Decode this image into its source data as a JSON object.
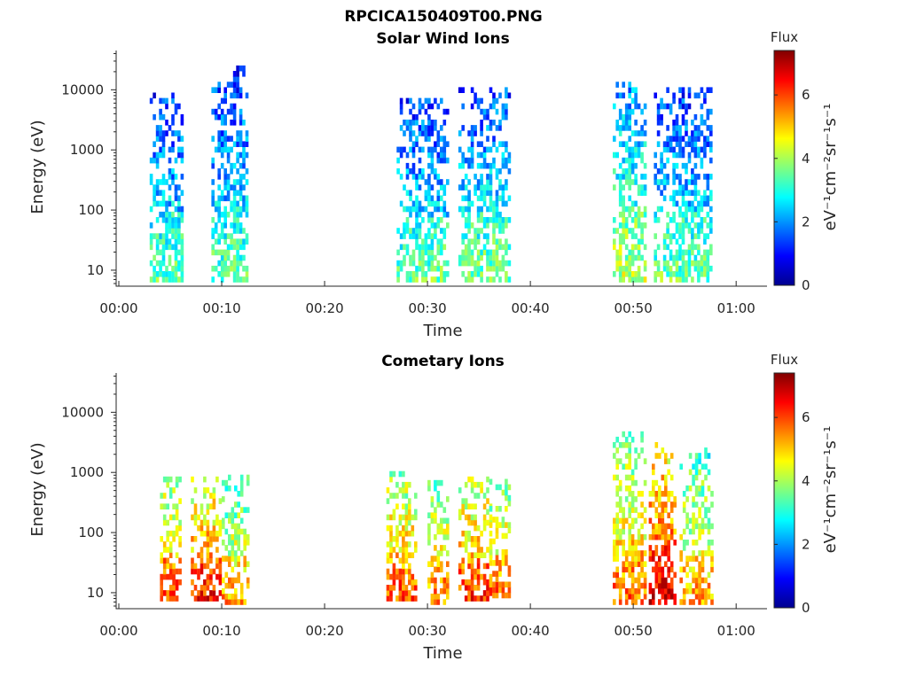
{
  "figure_title": "RPCICA150409T00.PNG",
  "chart_data": [
    {
      "type": "heatmap",
      "title": "Solar Wind Ions",
      "xlabel": "Time",
      "ylabel": "Energy (eV)",
      "y_scale": "log",
      "xlim": [
        "00:00",
        "01:03"
      ],
      "ylim": [
        6,
        45000
      ],
      "x_ticks": [
        "00:00",
        "00:10",
        "00:20",
        "00:30",
        "00:40",
        "00:50",
        "01:00"
      ],
      "y_ticks": [
        "10",
        "100",
        "1000",
        "10000"
      ],
      "colorbar": {
        "title": "Flux",
        "label": "eV⁻¹cm⁻²sr⁻¹s⁻¹",
        "range": [
          0,
          7.4
        ],
        "ticks": [
          "0",
          "2",
          "4",
          "6"
        ],
        "colormap": "jet"
      },
      "bursts": [
        {
          "t0": "00:03",
          "t1": "00:06",
          "e_low": 7,
          "e_high": 9000,
          "flux": 2.3
        },
        {
          "t0": "00:09",
          "t1": "00:12.5",
          "e_low": 7,
          "e_high": 25000,
          "flux": 2.3
        },
        {
          "t0": "00:27",
          "t1": "00:32",
          "e_low": 7,
          "e_high": 7000,
          "flux": 2.4
        },
        {
          "t0": "00:33",
          "t1": "00:38",
          "e_low": 7,
          "e_high": 11000,
          "flux": 2.5
        },
        {
          "t0": "00:48",
          "t1": "00:51",
          "e_low": 7,
          "e_high": 14000,
          "flux": 3.0
        },
        {
          "t0": "00:52",
          "t1": "00:57.5",
          "e_low": 7,
          "e_high": 10000,
          "flux": 2.4
        }
      ],
      "grid": false,
      "legend": "colorbar-right"
    },
    {
      "type": "heatmap",
      "title": "Cometary Ions",
      "xlabel": "Time",
      "ylabel": "Energy (eV)",
      "y_scale": "log",
      "xlim": [
        "00:00",
        "01:03"
      ],
      "ylim": [
        6,
        45000
      ],
      "x_ticks": [
        "00:00",
        "00:10",
        "00:20",
        "00:30",
        "00:40",
        "00:50",
        "01:00"
      ],
      "y_ticks": [
        "10",
        "100",
        "1000",
        "10000"
      ],
      "colorbar": {
        "title": "Flux",
        "label": "eV⁻¹cm⁻²sr⁻¹s⁻¹",
        "range": [
          0,
          7.4
        ],
        "ticks": [
          "0",
          "2",
          "4",
          "6"
        ],
        "colormap": "jet"
      },
      "bursts": [
        {
          "t0": "00:04",
          "t1": "00:06",
          "e_low": 8,
          "e_high": 900,
          "flux": 4.8
        },
        {
          "t0": "00:07",
          "t1": "00:10",
          "e_low": 8,
          "e_high": 900,
          "flux": 5.2
        },
        {
          "t0": "00:10",
          "t1": "00:12.5",
          "e_low": 7,
          "e_high": 900,
          "flux": 4.2
        },
        {
          "t0": "00:26",
          "t1": "00:29",
          "e_low": 8,
          "e_high": 1100,
          "flux": 4.8
        },
        {
          "t0": "00:30",
          "t1": "00:32",
          "e_low": 7,
          "e_high": 700,
          "flux": 4.5
        },
        {
          "t0": "00:33",
          "t1": "00:36",
          "e_low": 8,
          "e_high": 900,
          "flux": 5.0
        },
        {
          "t0": "00:36",
          "t1": "00:38",
          "e_low": 9,
          "e_high": 700,
          "flux": 4.6
        },
        {
          "t0": "00:48",
          "t1": "00:51",
          "e_low": 7,
          "e_high": 5000,
          "flux": 4.6
        },
        {
          "t0": "00:51.5",
          "t1": "00:54",
          "e_low": 7,
          "e_high": 3000,
          "flux": 5.6
        },
        {
          "t0": "00:54.5",
          "t1": "00:57.5",
          "e_low": 7,
          "e_high": 2500,
          "flux": 4.2
        }
      ],
      "grid": false,
      "legend": "colorbar-right"
    }
  ]
}
